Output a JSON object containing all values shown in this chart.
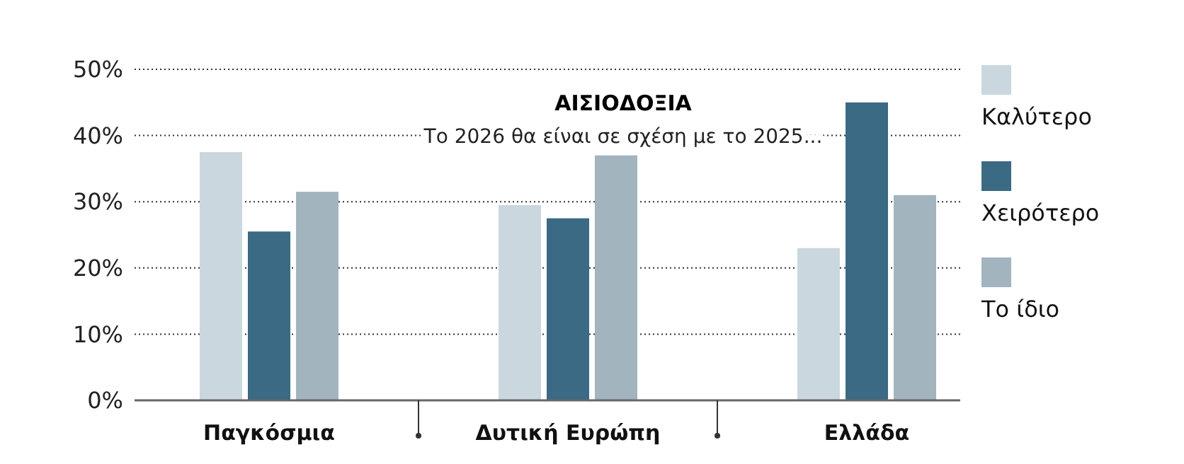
{
  "chart_data": {
    "type": "bar",
    "title": "ΑΙΣΙΟΔΟΞΙΑ",
    "subtitle": "Το 2026 θα είναι σε σχέση με το 2025...",
    "categories": [
      "Παγκόσμια",
      "Δυτική Ευρώπη",
      "Ελλάδα"
    ],
    "series": [
      {
        "name": "Καλύτερο",
        "color": "#cbd7df",
        "values": [
          37.5,
          29.5,
          23
        ]
      },
      {
        "name": "Χειρότερο",
        "color": "#3b6a84",
        "values": [
          25.5,
          27.5,
          45
        ]
      },
      {
        "name": "Το ίδιο",
        "color": "#a2b4be",
        "values": [
          31.5,
          37,
          31
        ]
      }
    ],
    "ylim": [
      0,
      50
    ],
    "yticks": [
      {
        "value": 0,
        "label": "0%"
      },
      {
        "value": 10,
        "label": "10%"
      },
      {
        "value": 20,
        "label": "20%"
      },
      {
        "value": 30,
        "label": "30%"
      },
      {
        "value": 40,
        "label": "40%"
      },
      {
        "value": 50,
        "label": "50%"
      }
    ],
    "grid": "y",
    "legend": "right"
  }
}
